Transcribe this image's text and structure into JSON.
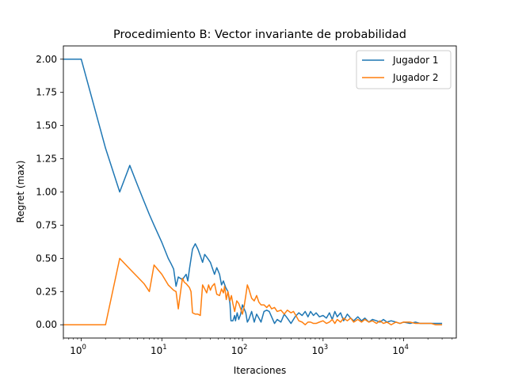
{
  "chart_data": {
    "type": "line",
    "title": "Procedimiento B: Vector invariante de probabilidad",
    "xlabel": "Iteraciones",
    "ylabel": "Regret (max)",
    "xscale": "log",
    "xlim": [
      0.6,
      45000
    ],
    "ylim": [
      -0.1,
      2.1
    ],
    "x_ticks": [
      {
        "exp": "0",
        "value": 1
      },
      {
        "exp": "1",
        "value": 10
      },
      {
        "exp": "2",
        "value": 100
      },
      {
        "exp": "3",
        "value": 1000
      },
      {
        "exp": "4",
        "value": 10000
      }
    ],
    "x_tick_base": "10",
    "y_ticks": [
      "0.00",
      "0.25",
      "0.50",
      "0.75",
      "1.00",
      "1.25",
      "1.50",
      "1.75",
      "2.00"
    ],
    "grid": false,
    "legend_position": "top-right",
    "series": [
      {
        "name": "Jugador 1",
        "color": "#1f77b4",
        "points": [
          [
            0.6,
            2.0
          ],
          [
            1,
            2.0
          ],
          [
            2,
            1.33
          ],
          [
            3,
            1.0
          ],
          [
            4,
            1.2
          ],
          [
            5,
            1.05
          ],
          [
            6,
            0.93
          ],
          [
            7,
            0.83
          ],
          [
            8,
            0.75
          ],
          [
            10,
            0.62
          ],
          [
            12,
            0.5
          ],
          [
            13,
            0.46
          ],
          [
            14,
            0.42
          ],
          [
            15,
            0.29
          ],
          [
            16,
            0.36
          ],
          [
            18,
            0.34
          ],
          [
            20,
            0.38
          ],
          [
            21,
            0.33
          ],
          [
            22,
            0.42
          ],
          [
            24,
            0.57
          ],
          [
            26,
            0.61
          ],
          [
            28,
            0.57
          ],
          [
            30,
            0.52
          ],
          [
            32,
            0.47
          ],
          [
            34,
            0.53
          ],
          [
            37,
            0.5
          ],
          [
            40,
            0.47
          ],
          [
            45,
            0.38
          ],
          [
            48,
            0.43
          ],
          [
            52,
            0.38
          ],
          [
            55,
            0.3
          ],
          [
            58,
            0.33
          ],
          [
            62,
            0.28
          ],
          [
            66,
            0.25
          ],
          [
            70,
            0.16
          ],
          [
            72,
            0.03
          ],
          [
            76,
            0.03
          ],
          [
            80,
            0.07
          ],
          [
            82,
            0.03
          ],
          [
            86,
            0.09
          ],
          [
            90,
            0.04
          ],
          [
            95,
            0.08
          ],
          [
            100,
            0.15
          ],
          [
            105,
            0.12
          ],
          [
            110,
            0.09
          ],
          [
            115,
            0.02
          ],
          [
            120,
            0.04
          ],
          [
            130,
            0.1
          ],
          [
            140,
            0.02
          ],
          [
            150,
            0.08
          ],
          [
            160,
            0.05
          ],
          [
            170,
            0.02
          ],
          [
            185,
            0.1
          ],
          [
            200,
            0.11
          ],
          [
            215,
            0.1
          ],
          [
            230,
            0.06
          ],
          [
            250,
            0.01
          ],
          [
            270,
            0.04
          ],
          [
            300,
            0.02
          ],
          [
            330,
            0.08
          ],
          [
            360,
            0.05
          ],
          [
            400,
            0.01
          ],
          [
            450,
            0.06
          ],
          [
            500,
            0.09
          ],
          [
            550,
            0.07
          ],
          [
            600,
            0.1
          ],
          [
            650,
            0.06
          ],
          [
            700,
            0.1
          ],
          [
            760,
            0.07
          ],
          [
            820,
            0.09
          ],
          [
            900,
            0.06
          ],
          [
            1000,
            0.07
          ],
          [
            1100,
            0.05
          ],
          [
            1200,
            0.09
          ],
          [
            1300,
            0.04
          ],
          [
            1400,
            0.1
          ],
          [
            1500,
            0.06
          ],
          [
            1650,
            0.09
          ],
          [
            1800,
            0.03
          ],
          [
            2000,
            0.08
          ],
          [
            2200,
            0.05
          ],
          [
            2400,
            0.03
          ],
          [
            2700,
            0.06
          ],
          [
            3000,
            0.03
          ],
          [
            3300,
            0.05
          ],
          [
            3700,
            0.02
          ],
          [
            4100,
            0.04
          ],
          [
            4600,
            0.03
          ],
          [
            5100,
            0.02
          ],
          [
            5600,
            0.04
          ],
          [
            6200,
            0.02
          ],
          [
            7000,
            0.03
          ],
          [
            8000,
            0.02
          ],
          [
            9000,
            0.01
          ],
          [
            10000,
            0.02
          ],
          [
            12000,
            0.01
          ],
          [
            14000,
            0.02
          ],
          [
            16000,
            0.01
          ],
          [
            19000,
            0.01
          ],
          [
            22000,
            0.01
          ],
          [
            25000,
            0.01
          ],
          [
            30000,
            0.01
          ]
        ]
      },
      {
        "name": "Jugador 2",
        "color": "#ff7f0e",
        "points": [
          [
            0.6,
            0.0
          ],
          [
            1,
            0.0
          ],
          [
            2,
            0.0
          ],
          [
            3,
            0.5
          ],
          [
            4,
            0.42
          ],
          [
            5,
            0.36
          ],
          [
            6,
            0.31
          ],
          [
            7,
            0.25
          ],
          [
            8,
            0.45
          ],
          [
            10,
            0.38
          ],
          [
            12,
            0.3
          ],
          [
            14,
            0.26
          ],
          [
            15,
            0.25
          ],
          [
            16,
            0.12
          ],
          [
            17,
            0.24
          ],
          [
            18,
            0.35
          ],
          [
            19,
            0.32
          ],
          [
            20,
            0.31
          ],
          [
            22,
            0.28
          ],
          [
            23,
            0.25
          ],
          [
            24,
            0.09
          ],
          [
            26,
            0.08
          ],
          [
            28,
            0.08
          ],
          [
            30,
            0.07
          ],
          [
            32,
            0.3
          ],
          [
            34,
            0.27
          ],
          [
            36,
            0.24
          ],
          [
            38,
            0.3
          ],
          [
            40,
            0.26
          ],
          [
            42,
            0.29
          ],
          [
            45,
            0.31
          ],
          [
            48,
            0.23
          ],
          [
            52,
            0.22
          ],
          [
            55,
            0.27
          ],
          [
            58,
            0.24
          ],
          [
            60,
            0.29
          ],
          [
            63,
            0.19
          ],
          [
            66,
            0.25
          ],
          [
            70,
            0.18
          ],
          [
            73,
            0.22
          ],
          [
            76,
            0.16
          ],
          [
            80,
            0.1
          ],
          [
            85,
            0.18
          ],
          [
            90,
            0.16
          ],
          [
            95,
            0.12
          ],
          [
            100,
            0.08
          ],
          [
            105,
            0.14
          ],
          [
            110,
            0.22
          ],
          [
            115,
            0.3
          ],
          [
            120,
            0.27
          ],
          [
            130,
            0.2
          ],
          [
            140,
            0.18
          ],
          [
            150,
            0.22
          ],
          [
            160,
            0.17
          ],
          [
            170,
            0.15
          ],
          [
            185,
            0.15
          ],
          [
            200,
            0.13
          ],
          [
            215,
            0.15
          ],
          [
            230,
            0.12
          ],
          [
            250,
            0.13
          ],
          [
            270,
            0.1
          ],
          [
            300,
            0.11
          ],
          [
            330,
            0.08
          ],
          [
            360,
            0.11
          ],
          [
            400,
            0.09
          ],
          [
            430,
            0.1
          ],
          [
            460,
            0.07
          ],
          [
            500,
            0.03
          ],
          [
            550,
            0.02
          ],
          [
            600,
            0.0
          ],
          [
            650,
            0.02
          ],
          [
            700,
            0.02
          ],
          [
            760,
            0.01
          ],
          [
            820,
            0.01
          ],
          [
            900,
            0.02
          ],
          [
            1000,
            0.03
          ],
          [
            1100,
            0.01
          ],
          [
            1200,
            0.02
          ],
          [
            1300,
            0.04
          ],
          [
            1400,
            0.01
          ],
          [
            1500,
            0.04
          ],
          [
            1650,
            0.02
          ],
          [
            1800,
            0.05
          ],
          [
            2000,
            0.03
          ],
          [
            2200,
            0.05
          ],
          [
            2400,
            0.02
          ],
          [
            2700,
            0.04
          ],
          [
            3000,
            0.02
          ],
          [
            3300,
            0.04
          ],
          [
            3700,
            0.02
          ],
          [
            4100,
            0.03
          ],
          [
            4600,
            0.01
          ],
          [
            5100,
            0.03
          ],
          [
            5600,
            0.01
          ],
          [
            6200,
            0.02
          ],
          [
            7000,
            0.0
          ],
          [
            8000,
            0.02
          ],
          [
            9000,
            0.01
          ],
          [
            10000,
            0.02
          ],
          [
            12000,
            0.02
          ],
          [
            14000,
            0.01
          ],
          [
            16000,
            0.01
          ],
          [
            19000,
            0.01
          ],
          [
            22000,
            0.01
          ],
          [
            25000,
            0.0
          ],
          [
            30000,
            0.0
          ]
        ]
      }
    ]
  }
}
